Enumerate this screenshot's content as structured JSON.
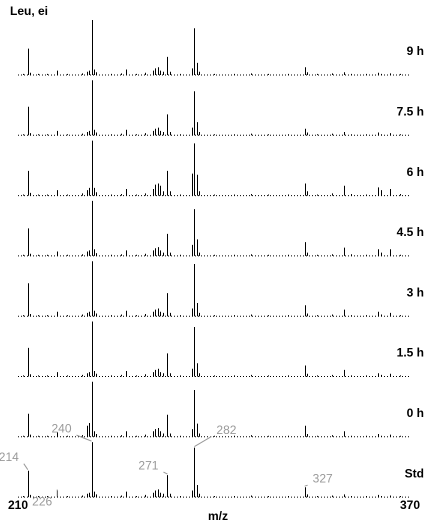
{
  "chart_data": {
    "type": "spectrum",
    "title": "Leu, ei",
    "xlabel": "m/z",
    "xlim": [
      210,
      370
    ],
    "xticks": [
      210,
      370
    ],
    "ylim": [
      0,
      100
    ],
    "color": "#000000",
    "annotation_color": "#999999",
    "x": [
      212,
      214,
      215,
      218,
      222,
      226,
      230,
      236,
      238,
      239,
      240,
      241,
      242,
      248,
      252,
      254,
      258,
      262,
      265,
      266,
      267,
      268,
      269,
      271,
      272,
      276,
      281,
      282,
      283,
      284,
      290,
      298,
      305,
      312,
      320,
      327,
      328,
      332,
      338,
      343,
      346,
      352,
      357,
      358,
      362,
      366
    ],
    "panels": [
      {
        "name": "9 h",
        "values": [
          2,
          48,
          4,
          2,
          2,
          8,
          2,
          3,
          6,
          8,
          100,
          10,
          5,
          2,
          3,
          10,
          2,
          4,
          8,
          12,
          14,
          8,
          6,
          33,
          6,
          2,
          12,
          85,
          22,
          6,
          2,
          2,
          3,
          2,
          2,
          14,
          5,
          2,
          3,
          5,
          2,
          2,
          4,
          2,
          3,
          2
        ]
      },
      {
        "name": "7.5 h",
        "values": [
          2,
          52,
          4,
          2,
          2,
          8,
          2,
          3,
          6,
          8,
          100,
          10,
          5,
          2,
          3,
          10,
          2,
          4,
          8,
          12,
          14,
          8,
          6,
          38,
          6,
          2,
          14,
          80,
          24,
          6,
          2,
          2,
          3,
          2,
          2,
          12,
          5,
          2,
          3,
          6,
          2,
          2,
          5,
          2,
          4,
          2
        ]
      },
      {
        "name": "6 h",
        "values": [
          2,
          45,
          5,
          2,
          2,
          10,
          2,
          4,
          10,
          14,
          100,
          14,
          6,
          2,
          3,
          12,
          2,
          4,
          12,
          20,
          22,
          18,
          8,
          45,
          8,
          2,
          40,
          95,
          38,
          8,
          2,
          2,
          3,
          2,
          2,
          22,
          8,
          2,
          4,
          18,
          3,
          2,
          15,
          10,
          12,
          3
        ]
      },
      {
        "name": "4.5 h",
        "values": [
          2,
          50,
          4,
          2,
          2,
          8,
          2,
          3,
          8,
          10,
          100,
          12,
          5,
          2,
          3,
          10,
          2,
          4,
          10,
          14,
          16,
          10,
          6,
          40,
          6,
          2,
          20,
          85,
          30,
          6,
          2,
          2,
          3,
          2,
          2,
          25,
          6,
          2,
          3,
          15,
          3,
          2,
          12,
          6,
          12,
          2
        ]
      },
      {
        "name": "3 h",
        "values": [
          2,
          60,
          4,
          2,
          2,
          8,
          2,
          3,
          6,
          8,
          100,
          10,
          5,
          2,
          3,
          10,
          2,
          4,
          8,
          12,
          14,
          8,
          6,
          42,
          6,
          2,
          14,
          95,
          24,
          6,
          2,
          2,
          3,
          2,
          2,
          20,
          5,
          2,
          3,
          12,
          2,
          2,
          8,
          3,
          6,
          2
        ]
      },
      {
        "name": "1.5 h",
        "values": [
          2,
          52,
          4,
          2,
          2,
          8,
          2,
          3,
          6,
          8,
          100,
          10,
          5,
          2,
          3,
          10,
          2,
          4,
          8,
          12,
          14,
          8,
          6,
          42,
          6,
          2,
          14,
          90,
          24,
          6,
          2,
          2,
          3,
          2,
          2,
          20,
          5,
          2,
          3,
          12,
          2,
          2,
          6,
          3,
          5,
          2
        ]
      },
      {
        "name": "0 h",
        "values": [
          2,
          42,
          4,
          2,
          2,
          8,
          2,
          3,
          20,
          25,
          100,
          10,
          5,
          2,
          3,
          10,
          2,
          4,
          10,
          14,
          16,
          10,
          6,
          40,
          6,
          2,
          14,
          85,
          24,
          6,
          2,
          2,
          3,
          2,
          2,
          20,
          5,
          2,
          3,
          10,
          2,
          2,
          5,
          2,
          4,
          2
        ]
      },
      {
        "name": "Std",
        "values": [
          2,
          48,
          4,
          2,
          2,
          12,
          2,
          3,
          6,
          8,
          100,
          10,
          5,
          2,
          3,
          10,
          2,
          4,
          8,
          12,
          14,
          8,
          6,
          40,
          6,
          2,
          12,
          90,
          22,
          6,
          2,
          2,
          3,
          2,
          2,
          18,
          5,
          2,
          3,
          5,
          2,
          2,
          4,
          2,
          3,
          2
        ]
      }
    ],
    "peak_labels": [
      214,
      226,
      240,
      271,
      282,
      327
    ]
  }
}
